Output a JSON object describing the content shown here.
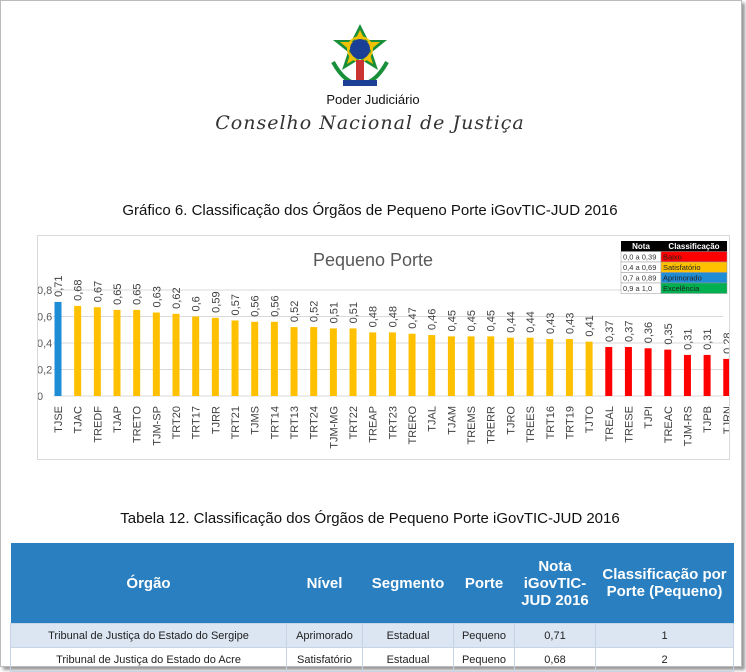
{
  "header": {
    "institution": "Poder Judiciário",
    "council": "Conselho Nacional de Justiça"
  },
  "chart_title": "Gráfico 6. Classificação dos Órgãos de Pequeno Porte iGovTIC-JUD 2016",
  "legend": {
    "header": [
      "Nota",
      "Classificação"
    ],
    "rows": [
      {
        "range": "0,0 a 0,39",
        "label": "Baixo",
        "color": "#ff0000"
      },
      {
        "range": "0,4 a 0,69",
        "label": "Satisfatório",
        "color": "#ffc000"
      },
      {
        "range": "0,7 a 0,89",
        "label": "Aprimorado",
        "color": "#1f8dd6"
      },
      {
        "range": "0,9 a 1,0",
        "label": "Excelência",
        "color": "#00b050"
      }
    ]
  },
  "chart_data": {
    "type": "bar",
    "title": "Pequeno Porte",
    "ylim": [
      0,
      0.8
    ],
    "yticks": [
      "0",
      "0,2",
      "0,4",
      "0,6",
      "0,8"
    ],
    "categories": [
      "TJSE",
      "TJAC",
      "TREDF",
      "TJAP",
      "TRETO",
      "TJM-SP",
      "TRT20",
      "TRT17",
      "TJRR",
      "TRT21",
      "TJMS",
      "TRT14",
      "TRT13",
      "TRT24",
      "TJM-MG",
      "TRT22",
      "TREAP",
      "TRT23",
      "TRERO",
      "TJAL",
      "TJAM",
      "TREMS",
      "TRERR",
      "TJRO",
      "TREES",
      "TRT16",
      "TRT19",
      "TJTO",
      "TREAL",
      "TRESE",
      "TJPI",
      "TREAC",
      "TJM-RS",
      "TJPB",
      "TJRN"
    ],
    "values": [
      0.71,
      0.68,
      0.67,
      0.65,
      0.65,
      0.63,
      0.62,
      0.6,
      0.59,
      0.57,
      0.56,
      0.56,
      0.52,
      0.52,
      0.51,
      0.51,
      0.48,
      0.48,
      0.47,
      0.46,
      0.45,
      0.45,
      0.45,
      0.44,
      0.44,
      0.43,
      0.43,
      0.41,
      0.37,
      0.37,
      0.36,
      0.35,
      0.31,
      0.31,
      0.28
    ],
    "value_labels": [
      "0,71",
      "0,68",
      "0,67",
      "0,65",
      "0,65",
      "0,63",
      "0,62",
      "0,6",
      "0,59",
      "0,57",
      "0,56",
      "0,56",
      "0,52",
      "0,52",
      "0,51",
      "0,51",
      "0,48",
      "0,48",
      "0,47",
      "0,46",
      "0,45",
      "0,45",
      "0,45",
      "0,44",
      "0,44",
      "0,43",
      "0,43",
      "0,41",
      "0,37",
      "0,37",
      "0,36",
      "0,35",
      "0,31",
      "0,31",
      "0,28"
    ]
  },
  "table_title": "Tabela 12. Classificação dos Órgãos de Pequeno Porte iGovTIC-JUD 2016",
  "table": {
    "headers": [
      "Órgão",
      "Nível",
      "Segmento",
      "Porte",
      "Nota iGovTIC-JUD 2016",
      "Classificação por Porte (Pequeno)"
    ],
    "rows": [
      [
        "Tribunal de Justiça do Estado do Sergipe",
        "Aprimorado",
        "Estadual",
        "Pequeno",
        "0,71",
        "1"
      ],
      [
        "Tribunal de Justiça do Estado do Acre",
        "Satisfatório",
        "Estadual",
        "Pequeno",
        "0,68",
        "2"
      ]
    ]
  }
}
